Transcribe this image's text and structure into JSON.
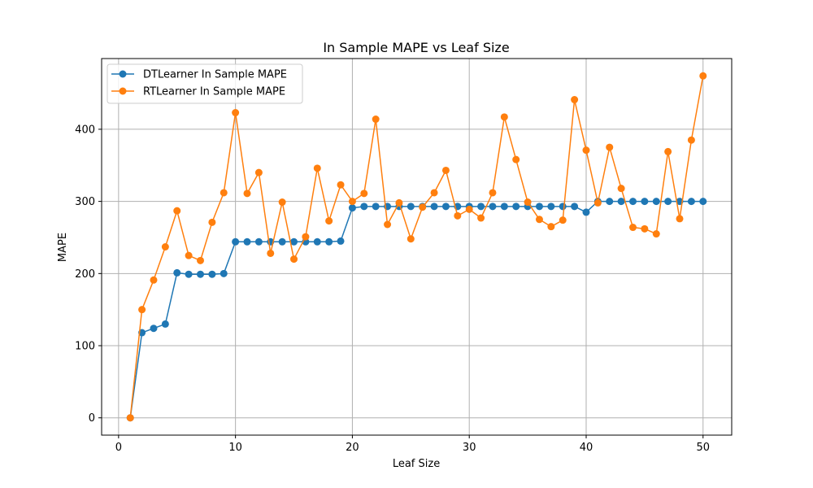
{
  "chart_data": {
    "type": "line",
    "title": "In Sample MAPE vs Leaf Size",
    "xlabel": "Leaf Size",
    "ylabel": "MAPE",
    "xlim": [
      -1.45,
      52.45
    ],
    "ylim": [
      -24,
      498
    ],
    "xticks": [
      0,
      10,
      20,
      30,
      40,
      50
    ],
    "yticks": [
      0,
      100,
      200,
      300,
      400
    ],
    "grid": true,
    "legend": "top-left",
    "x": [
      1,
      2,
      3,
      4,
      5,
      6,
      7,
      8,
      9,
      10,
      11,
      12,
      13,
      14,
      15,
      16,
      17,
      18,
      19,
      20,
      21,
      22,
      23,
      24,
      25,
      26,
      27,
      28,
      29,
      30,
      31,
      32,
      33,
      34,
      35,
      36,
      37,
      38,
      39,
      40,
      41,
      42,
      43,
      44,
      45,
      46,
      47,
      48,
      49,
      50
    ],
    "series": [
      {
        "name": "DTLearner In Sample MAPE",
        "color": "#1f77b4",
        "values": [
          0,
          118,
          124,
          130,
          201,
          199,
          199,
          199,
          200,
          244,
          244,
          244,
          244,
          244,
          244,
          244,
          244,
          244,
          245,
          291,
          293,
          293,
          293,
          293,
          293,
          293,
          293,
          293,
          293,
          293,
          293,
          293,
          293,
          293,
          293,
          293,
          293,
          293,
          293,
          285,
          300,
          300,
          300,
          300,
          300,
          300,
          300,
          300,
          300,
          300
        ]
      },
      {
        "name": "RTLearner In Sample MAPE",
        "color": "#ff7f0e",
        "values": [
          0,
          150,
          191,
          237,
          287,
          225,
          218,
          271,
          312,
          423,
          311,
          340,
          228,
          299,
          220,
          251,
          346,
          273,
          323,
          300,
          311,
          414,
          268,
          298,
          248,
          292,
          312,
          343,
          280,
          289,
          277,
          312,
          417,
          358,
          299,
          275,
          265,
          274,
          441,
          371,
          298,
          375,
          318,
          264,
          262,
          255,
          369,
          276,
          385,
          474
        ]
      }
    ]
  }
}
